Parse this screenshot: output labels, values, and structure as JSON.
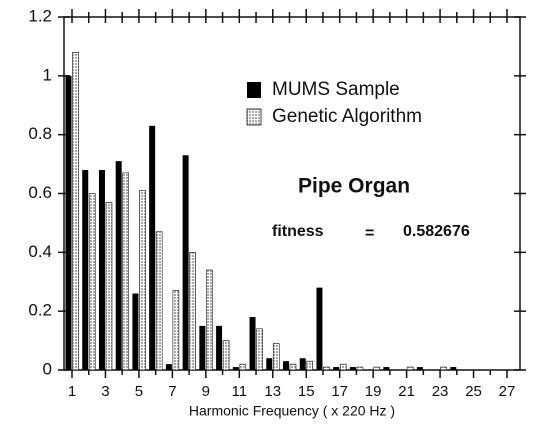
{
  "chart_data": {
    "type": "bar",
    "x_label": "Harmonic Frequency ( x 220 Hz )",
    "categories": [
      1,
      null,
      3,
      null,
      5,
      null,
      7,
      null,
      9,
      null,
      11,
      null,
      13,
      null,
      15,
      null,
      17,
      null,
      19,
      null,
      21,
      null,
      23,
      null,
      25,
      null,
      27
    ],
    "series": [
      {
        "name": "MUMS Sample",
        "color": "#000000",
        "values": [
          1.0,
          0.68,
          0.68,
          0.71,
          0.26,
          0.83,
          0.02,
          0.73,
          0.15,
          0.15,
          0.01,
          0.18,
          0.04,
          0.03,
          0.04,
          0.28,
          0.01,
          0.01,
          0,
          0.01,
          0,
          0.01,
          0,
          0.01,
          0,
          0,
          0
        ]
      },
      {
        "name": "Genetic Algorithm",
        "color": "#a8a8a8",
        "values": [
          1.08,
          0.6,
          0.57,
          0.67,
          0.61,
          0.47,
          0.27,
          0.4,
          0.34,
          0.1,
          0.02,
          0.14,
          0.09,
          0.02,
          0.03,
          0.01,
          0.02,
          0.01,
          0.01,
          0,
          0.01,
          0,
          0.01,
          0,
          0,
          0,
          0
        ]
      }
    ],
    "ylim": [
      0,
      1.2
    ],
    "yticks": [
      0,
      0.2,
      0.4,
      0.6,
      0.8,
      1,
      1.2
    ],
    "annotations": [
      "Pipe Organ",
      "fitness",
      "=",
      "0.582676"
    ],
    "legend": "upper right"
  }
}
